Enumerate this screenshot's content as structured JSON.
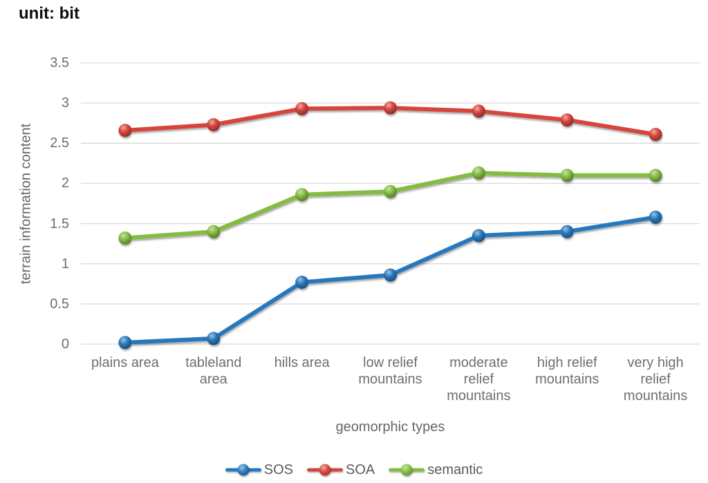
{
  "unit_label": "unit: bit",
  "chart_data": {
    "type": "line",
    "title": "",
    "xlabel": "geomorphic types",
    "ylabel": "terrain information content",
    "categories": [
      "plains area",
      "tableland area",
      "hills area",
      "low relief mountains",
      "moderate relief mountains",
      "high relief mountains",
      "very high relief mountains"
    ],
    "series": [
      {
        "name": "SOS",
        "color": "#2878BE",
        "values": [
          0.02,
          0.07,
          0.77,
          0.86,
          1.35,
          1.4,
          1.58
        ]
      },
      {
        "name": "SOA",
        "color": "#D6453C",
        "values": [
          2.66,
          2.73,
          2.93,
          2.94,
          2.9,
          2.79,
          2.61
        ]
      },
      {
        "name": "semantic",
        "color": "#84BC41",
        "values": [
          1.32,
          1.4,
          1.86,
          1.9,
          2.13,
          2.1,
          2.1
        ]
      }
    ],
    "ylim": [
      0,
      3.5
    ],
    "yticks": [
      0,
      0.5,
      1,
      1.5,
      2,
      2.5,
      3,
      3.5
    ],
    "ytick_labels": [
      "0",
      "0.5",
      "1",
      "1.5",
      "2",
      "2.5",
      "3",
      "3.5"
    ],
    "grid": true,
    "gridline_color": "#D9D9D9",
    "legend_position": "bottom"
  }
}
